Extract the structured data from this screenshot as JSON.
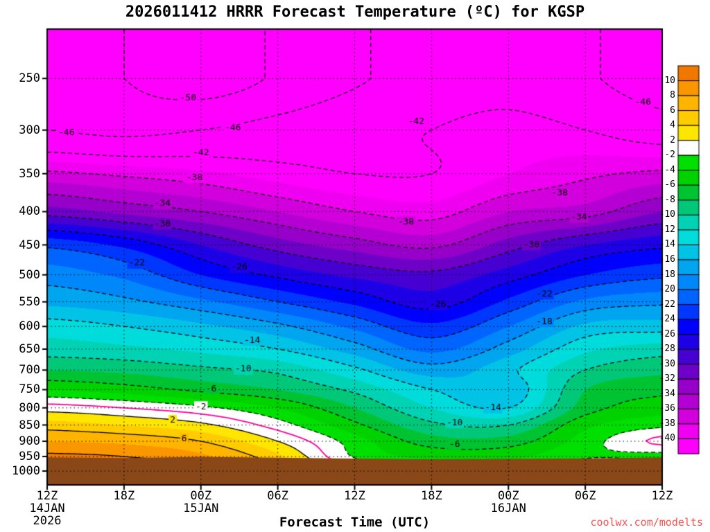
{
  "title": "2026011412 HRRR Forecast Temperature (ºC) for KGSP",
  "xlabel": "Forecast Time (UTC)",
  "watermark": "coolwx.com/modelts",
  "chart_data": {
    "type": "heatmap",
    "subtype": "time-height filled temperature contours",
    "station": "KGSP",
    "model": "HRRR",
    "init": "2026011412",
    "x_hours": [
      0,
      6,
      12,
      18,
      24,
      30,
      36,
      42,
      48
    ],
    "x_tick_labels": [
      "12Z",
      "18Z",
      "00Z",
      "06Z",
      "12Z",
      "18Z",
      "00Z",
      "06Z",
      "12Z"
    ],
    "date_labels": [
      {
        "text": "14JAN",
        "hour": 0,
        "row": 1
      },
      {
        "text": "2026",
        "hour": 0,
        "row": 2
      },
      {
        "text": "15JAN",
        "hour": 12,
        "row": 1
      },
      {
        "text": "16JAN",
        "hour": 36,
        "row": 1
      }
    ],
    "pressure_levels": [
      250,
      300,
      350,
      400,
      450,
      500,
      550,
      600,
      650,
      700,
      750,
      800,
      850,
      900,
      950,
      1000
    ],
    "y_axis": {
      "top_hpa": 210,
      "bottom_hpa": 1050,
      "scale": "log"
    },
    "temps": [
      [
        -48,
        -50,
        -52,
        -49.5,
        -46.5,
        -44.5,
        -43.5,
        -45.5,
        -48
      ],
      [
        -46,
        -47,
        -46,
        -44.5,
        -43,
        -42,
        -41,
        -42,
        -44
      ],
      [
        -37.5,
        -38.5,
        -39.5,
        -41,
        -42,
        -42,
        -40,
        -38.5,
        -37.5
      ],
      [
        -31,
        -32.5,
        -34,
        -36,
        -38,
        -39,
        -36,
        -35,
        -32
      ],
      [
        -22.5,
        -24.5,
        -28,
        -31,
        -33,
        -34.5,
        -31,
        -28,
        -26.5
      ],
      [
        -19,
        -20.5,
        -24,
        -26.5,
        -28.5,
        -29.5,
        -27,
        -24,
        -22.5
      ],
      [
        -16.5,
        -17.5,
        -19.5,
        -22,
        -24.5,
        -27,
        -23.5,
        -19.5,
        -18.5
      ],
      [
        -13,
        -14,
        -15.5,
        -17.5,
        -20.5,
        -23.5,
        -20,
        -15.5,
        -15
      ],
      [
        -11,
        -11.5,
        -12.5,
        -14,
        -17,
        -20.5,
        -17,
        -12.5,
        -11
      ],
      [
        -8,
        -8.5,
        -9.5,
        -10.5,
        -13.5,
        -17,
        -14.5,
        -10,
        -8.5
      ],
      [
        -4,
        -5,
        -6.5,
        -8,
        -10.5,
        -14,
        -15.5,
        -8,
        -6.5
      ],
      [
        1,
        0,
        -1.5,
        -4,
        -8,
        -12,
        -14,
        -7,
        -5
      ],
      [
        5,
        4,
        2.5,
        -1,
        -5.5,
        -9.5,
        -10,
        -4.5,
        -2.5
      ],
      [
        8,
        7.5,
        6,
        2,
        -3,
        -7,
        -7,
        -3,
        0.5
      ],
      [
        10.5,
        10,
        8.5,
        4.5,
        -2.2,
        -4.5,
        -4.5,
        -2.2,
        -2.5
      ],
      [
        12.5,
        12,
        10.5,
        6.5,
        0.5,
        -2.5,
        -2.5,
        -0.5,
        1.5
      ]
    ],
    "surface_pressure": [
      953,
      955,
      951,
      954,
      957,
      959,
      958,
      956,
      953
    ],
    "contour_levels_dashed": [
      -50,
      -46,
      -42,
      -38,
      -34,
      -30,
      -26,
      -22,
      -18,
      -14,
      -10,
      -6,
      -2
    ],
    "contour_levels_solid": [
      2,
      6,
      10
    ],
    "zero_line_level": 0,
    "contour_labels": [
      {
        "text": "-50",
        "t": 11,
        "p": 268
      },
      {
        "text": "-46",
        "t": 1.5,
        "p": 303
      },
      {
        "text": "-46",
        "t": 14.5,
        "p": 298
      },
      {
        "text": "-46",
        "t": 46.5,
        "p": 272
      },
      {
        "text": "-42",
        "t": 12,
        "p": 325
      },
      {
        "text": "-42",
        "t": 28.8,
        "p": 291
      },
      {
        "text": "-38",
        "t": 11.5,
        "p": 355
      },
      {
        "text": "-38",
        "t": 28,
        "p": 415
      },
      {
        "text": "-38",
        "t": 40,
        "p": 375
      },
      {
        "text": "-34",
        "t": 9,
        "p": 389
      },
      {
        "text": "-34",
        "t": 41.5,
        "p": 408
      },
      {
        "text": "-30",
        "t": 9,
        "p": 418
      },
      {
        "text": "-30",
        "t": 37.8,
        "p": 450
      },
      {
        "text": "-26",
        "t": 15,
        "p": 487
      },
      {
        "text": "-26",
        "t": 30.5,
        "p": 556
      },
      {
        "text": "-22",
        "t": 7,
        "p": 480
      },
      {
        "text": "-22",
        "t": 38.8,
        "p": 535
      },
      {
        "text": "-18",
        "t": 38.8,
        "p": 590
      },
      {
        "text": "-14",
        "t": 16,
        "p": 630
      },
      {
        "text": "-14",
        "t": 34.8,
        "p": 800
      },
      {
        "text": "-10",
        "t": 15.3,
        "p": 698
      },
      {
        "text": "-10",
        "t": 31.8,
        "p": 843
      },
      {
        "text": "-6",
        "t": 12.8,
        "p": 748
      },
      {
        "text": "-6",
        "t": 31.8,
        "p": 910
      },
      {
        "text": "-2",
        "t": 12,
        "p": 797
      },
      {
        "text": "2",
        "t": 9.8,
        "p": 836
      },
      {
        "text": "6",
        "t": 10.7,
        "p": 893
      }
    ],
    "colorbar": {
      "labels_desc": [
        10,
        8,
        6,
        4,
        2,
        -2,
        -4,
        -6,
        -8,
        -10,
        -12,
        -14,
        -16,
        -18,
        -20,
        -22,
        -24,
        -26,
        -28,
        -30,
        -32,
        -34,
        -36,
        -38,
        -40
      ],
      "thresholds_asc": [
        -40,
        -38,
        -36,
        -34,
        -32,
        -30,
        -28,
        -26,
        -24,
        -22,
        -20,
        -18,
        -16,
        -14,
        -12,
        -10,
        -8,
        -6,
        -4,
        -2,
        2,
        4,
        6,
        8,
        10
      ],
      "colors_asc": [
        "#ff00ff",
        "#f000f0",
        "#d200dc",
        "#b400d2",
        "#9600c8",
        "#6e00c8",
        "#4600d2",
        "#1e00e6",
        "#0000ff",
        "#0037ff",
        "#0064ff",
        "#0087fa",
        "#00a5f0",
        "#00c3e6",
        "#00dcdc",
        "#00d2b4",
        "#00c878",
        "#00c332",
        "#00d200",
        "#00e000",
        "#ffffff",
        "#ffe600",
        "#ffcc00",
        "#ffb400",
        "#fa9600",
        "#f07800"
      ]
    },
    "colors": {
      "terrain": "#8a4718",
      "zero_line": "#ff0096",
      "contour": "#000000",
      "grid": "#000000",
      "watermark": "#ff5050",
      "background": "#ffffff"
    }
  }
}
